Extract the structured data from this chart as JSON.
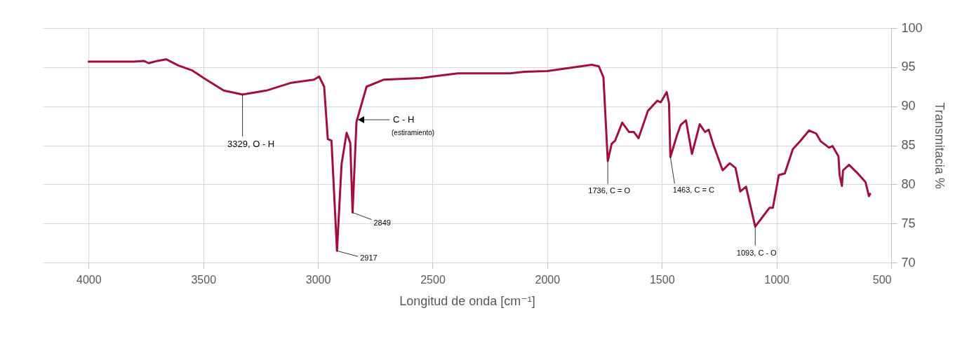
{
  "chart_data": {
    "type": "line",
    "xlabel": "Longitud de onda   [cm⁻¹]",
    "ylabel": "Transmitacia %",
    "x": [
      4000,
      3900,
      3800,
      3760,
      3738,
      3700,
      3662,
      3608,
      3550,
      3498,
      3411,
      3329,
      3225,
      3116,
      3017,
      2995,
      2973,
      2957,
      2941,
      2917,
      2897,
      2875,
      2859,
      2849,
      2832,
      2788,
      2712,
      2550,
      2500,
      2390,
      2162,
      2101,
      2000,
      1806,
      1775,
      1755,
      1736,
      1719,
      1704,
      1673,
      1643,
      1622,
      1602,
      1561,
      1520,
      1505,
      1479,
      1469,
      1463,
      1434,
      1418,
      1395,
      1369,
      1335,
      1312,
      1296,
      1276,
      1235,
      1204,
      1179,
      1158,
      1133,
      1093,
      1062,
      1031,
      1016,
      990,
      964,
      929,
      898,
      858,
      827,
      807,
      771,
      756,
      730,
      725,
      715,
      710,
      684,
      649,
      612,
      597,
      592
    ],
    "series": [
      {
        "color": "#a0103f",
        "values": [
          95.7,
          95.7,
          95.7,
          95.8,
          95.5,
          95.8,
          96.0,
          95.2,
          94.6,
          93.6,
          92.0,
          91.5,
          92.0,
          93.0,
          93.4,
          93.8,
          92.5,
          85.8,
          85.6,
          71.5,
          82.6,
          86.6,
          85.3,
          76.4,
          88.0,
          92.5,
          93.4,
          93.6,
          93.8,
          94.2,
          94.2,
          94.4,
          94.5,
          95.3,
          95.1,
          93.7,
          83.0,
          85.2,
          85.6,
          87.9,
          86.7,
          86.7,
          85.9,
          89.4,
          90.7,
          90.5,
          91.8,
          90.4,
          83.5,
          86.3,
          87.6,
          88.2,
          83.9,
          87.7,
          86.7,
          87.0,
          85.1,
          81.8,
          82.7,
          82.1,
          79.1,
          79.7,
          74.6,
          75.8,
          77.0,
          77.0,
          81.2,
          81.4,
          84.5,
          85.5,
          86.9,
          86.5,
          85.5,
          84.7,
          84.9,
          83.6,
          81.2,
          79.8,
          81.8,
          82.5,
          81.5,
          80.3,
          78.5,
          78.8
        ]
      }
    ],
    "xlim": [
      4200,
      500
    ],
    "xticks": [
      4000,
      3500,
      3000,
      2500,
      2000,
      1500,
      1000,
      500
    ],
    "ylim": [
      70,
      100
    ],
    "yticks": [
      70,
      75,
      80,
      85,
      90,
      95,
      100
    ],
    "grid": true,
    "annotations": [
      {
        "text": "3329,  O - H",
        "x": 3329,
        "y": 91.5
      },
      "C - H",
      "(estiramiento)",
      {
        "text": "2917",
        "x": 2917,
        "y": 71.5
      },
      {
        "text": "2849",
        "x": 2849,
        "y": 76.4
      },
      {
        "text": "1736,  C = O",
        "x": 1736,
        "y": 83.0
      },
      {
        "text": "1463,  C = C",
        "x": 1463,
        "y": 83.5
      },
      {
        "text": "1093,  C - O",
        "x": 1093,
        "y": 74.6
      }
    ]
  }
}
